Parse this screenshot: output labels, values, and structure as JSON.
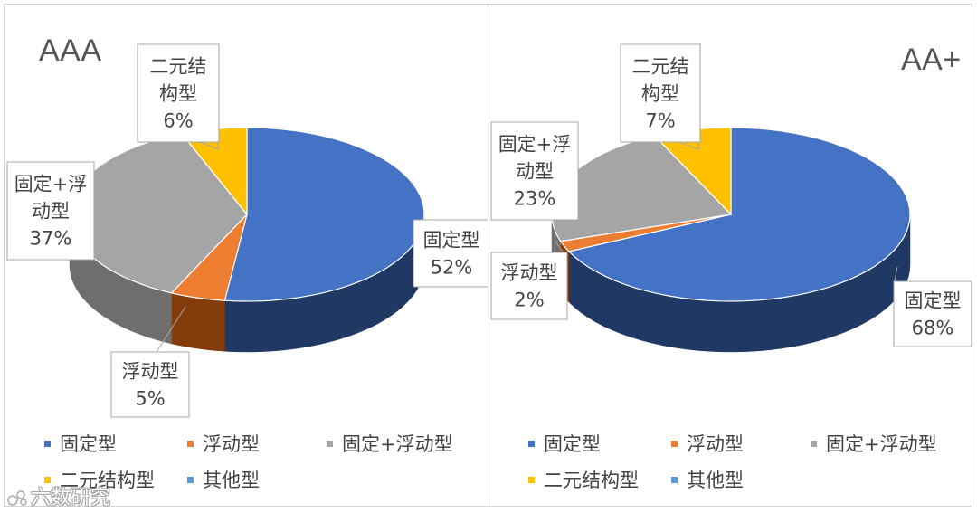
{
  "chart_data": [
    {
      "type": "pie",
      "title": "AAA",
      "slices": [
        {
          "name": "固定型",
          "value": 52,
          "label": "52%",
          "color": "#4472c4",
          "side": "#203864"
        },
        {
          "name": "浮动型",
          "value": 5,
          "label": "5%",
          "color": "#ed7d31",
          "side": "#843c0c"
        },
        {
          "name": "固定+浮动型",
          "value": 37,
          "label": "37%",
          "color": "#a5a5a5",
          "side": "#6e6e6e"
        },
        {
          "name": "二元结构型",
          "value": 6,
          "label": "6%",
          "color": "#ffc000",
          "side": "#9c7600"
        }
      ],
      "legend": [
        "固定型",
        "浮动型",
        "固定+浮动型",
        "二元结构型",
        "其他型"
      ],
      "legend_colors": [
        "#4472c4",
        "#ed7d31",
        "#a5a5a5",
        "#ffc000",
        "#5b9bd5"
      ]
    },
    {
      "type": "pie",
      "title": "AA+",
      "slices": [
        {
          "name": "固定型",
          "value": 68,
          "label": "68%",
          "color": "#4472c4",
          "side": "#203864"
        },
        {
          "name": "浮动型",
          "value": 2,
          "label": "2%",
          "color": "#ed7d31",
          "side": "#843c0c"
        },
        {
          "name": "固定+浮动型",
          "value": 23,
          "label": "23%",
          "color": "#a5a5a5",
          "side": "#6e6e6e"
        },
        {
          "name": "二元结构型",
          "value": 7,
          "label": "7%",
          "color": "#ffc000",
          "side": "#9c7600"
        }
      ],
      "legend": [
        "固定型",
        "浮动型",
        "固定+浮动型",
        "二元结构型",
        "其他型"
      ],
      "legend_colors": [
        "#4472c4",
        "#ed7d31",
        "#a5a5a5",
        "#ffc000",
        "#5b9bd5"
      ]
    }
  ],
  "labels": {
    "left": {
      "fixed": [
        "固定型",
        "52%"
      ],
      "float": [
        "浮动型",
        "5%"
      ],
      "mixed": [
        "固定+浮",
        "动型",
        "37%"
      ],
      "binary": [
        "二元结",
        "构型",
        "6%"
      ]
    },
    "right": {
      "fixed": [
        "固定型",
        "68%"
      ],
      "float": [
        "浮动型",
        "2%"
      ],
      "mixed": [
        "固定+浮",
        "动型",
        "23%"
      ],
      "binary": [
        "二元结",
        "构型",
        "7%"
      ]
    }
  },
  "watermark": "六数研究"
}
